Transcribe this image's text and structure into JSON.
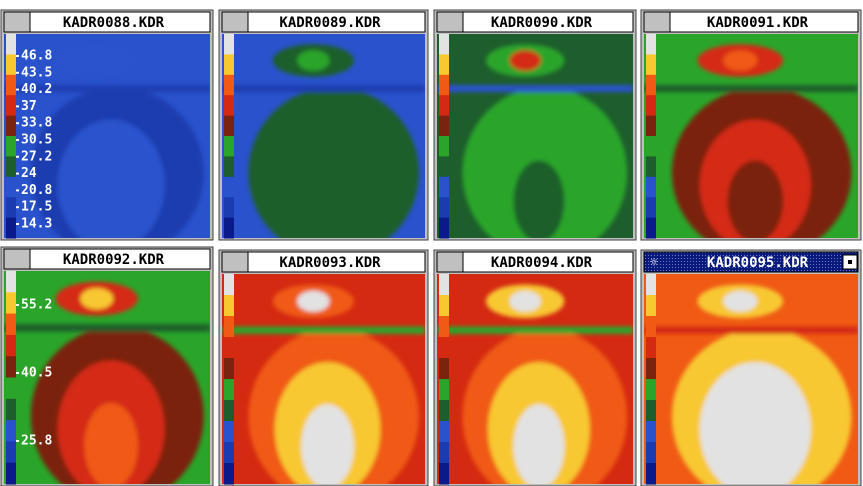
{
  "windows": [
    {
      "title": "KADR0088.KDR",
      "scale": [
        "46.8",
        "43.5",
        "40.2",
        "37",
        "33.8",
        "30.5",
        "27.2",
        "24",
        "20.8",
        "17.5",
        "14.3"
      ]
    },
    {
      "title": "KADR0089.KDR"
    },
    {
      "title": "KADR0090.KDR"
    },
    {
      "title": "KADR0091.KDR"
    },
    {
      "title": "KADR0092.KDR",
      "scale": [
        "55.2",
        "40.5",
        "25.8"
      ]
    },
    {
      "title": "KADR0093.KDR"
    },
    {
      "title": "KADR0094.KDR"
    },
    {
      "title": "KADR0095.KDR"
    }
  ]
}
